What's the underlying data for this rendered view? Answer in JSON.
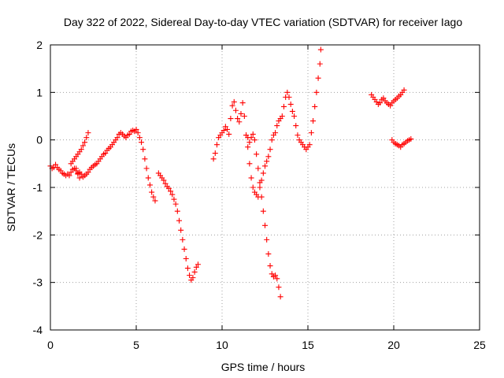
{
  "chart_data": {
    "type": "scatter",
    "title": "Day 322 of 2022, Sidereal Day-to-day VTEC variation (SDTVAR) for receiver Iago",
    "xlabel": "GPS time / hours",
    "ylabel": "SDTVAR / TECUs",
    "xlim": [
      0,
      25
    ],
    "ylim": [
      -4,
      2
    ],
    "xticks": [
      "0",
      "5",
      "10",
      "15",
      "20",
      "25"
    ],
    "yticks": [
      "-4",
      "-3",
      "-2",
      "-1",
      "0",
      "1",
      "2"
    ],
    "grid": true,
    "marker": "plus",
    "color": "#ff0000",
    "series": [
      {
        "points": [
          [
            0.0,
            -0.55
          ],
          [
            0.1,
            -0.6
          ],
          [
            0.2,
            -0.58
          ],
          [
            0.3,
            -0.52
          ],
          [
            0.4,
            -0.58
          ],
          [
            0.5,
            -0.62
          ],
          [
            0.6,
            -0.65
          ],
          [
            0.7,
            -0.7
          ],
          [
            0.8,
            -0.72
          ],
          [
            0.9,
            -0.75
          ],
          [
            1.0,
            -0.72
          ],
          [
            1.1,
            -0.75
          ],
          [
            1.2,
            -0.68
          ],
          [
            1.3,
            -0.62
          ],
          [
            1.4,
            -0.6
          ],
          [
            1.5,
            -0.65
          ],
          [
            1.6,
            -0.72
          ],
          [
            1.7,
            -0.68
          ],
          [
            1.8,
            -0.72
          ],
          [
            1.9,
            -0.78
          ],
          [
            2.0,
            -0.75
          ],
          [
            2.1,
            -0.72
          ],
          [
            2.2,
            -0.68
          ],
          [
            2.3,
            -0.62
          ],
          [
            2.4,
            -0.58
          ],
          [
            2.5,
            -0.55
          ],
          [
            2.6,
            -0.52
          ],
          [
            2.7,
            -0.5
          ],
          [
            2.8,
            -0.45
          ],
          [
            2.9,
            -0.4
          ],
          [
            3.0,
            -0.35
          ],
          [
            3.1,
            -0.3
          ],
          [
            3.2,
            -0.28
          ],
          [
            3.3,
            -0.22
          ],
          [
            3.4,
            -0.18
          ],
          [
            3.5,
            -0.15
          ],
          [
            3.6,
            -0.1
          ],
          [
            3.7,
            -0.05
          ],
          [
            3.8,
            0.0
          ],
          [
            3.9,
            0.05
          ],
          [
            4.0,
            0.12
          ],
          [
            4.1,
            0.15
          ],
          [
            4.2,
            0.12
          ],
          [
            4.3,
            0.08
          ],
          [
            4.4,
            0.05
          ],
          [
            4.5,
            0.1
          ],
          [
            4.6,
            0.12
          ],
          [
            4.7,
            0.18
          ],
          [
            4.8,
            0.2
          ],
          [
            4.9,
            0.18
          ],
          [
            5.0,
            0.22
          ],
          [
            5.1,
            0.15
          ],
          [
            5.2,
            0.05
          ],
          [
            5.3,
            -0.05
          ],
          [
            5.4,
            -0.2
          ],
          [
            5.5,
            -0.4
          ],
          [
            5.6,
            -0.6
          ],
          [
            5.7,
            -0.8
          ],
          [
            5.8,
            -0.95
          ],
          [
            5.9,
            -1.1
          ],
          [
            6.0,
            -1.2
          ],
          [
            6.1,
            -1.28
          ]
        ]
      },
      {
        "points": [
          [
            1.2,
            -0.5
          ],
          [
            1.3,
            -0.45
          ],
          [
            1.4,
            -0.4
          ],
          [
            1.5,
            -0.35
          ],
          [
            1.6,
            -0.3
          ],
          [
            1.7,
            -0.25
          ],
          [
            1.8,
            -0.2
          ],
          [
            1.9,
            -0.12
          ],
          [
            2.0,
            -0.05
          ],
          [
            2.1,
            0.05
          ],
          [
            2.2,
            0.15
          ],
          [
            1.5,
            -0.6
          ],
          [
            1.6,
            -0.7
          ],
          [
            1.7,
            -0.8
          ]
        ]
      },
      {
        "points": [
          [
            6.3,
            -0.7
          ],
          [
            6.4,
            -0.75
          ],
          [
            6.5,
            -0.8
          ],
          [
            6.6,
            -0.85
          ],
          [
            6.7,
            -0.92
          ],
          [
            6.8,
            -0.98
          ],
          [
            6.9,
            -1.02
          ],
          [
            7.0,
            -1.08
          ],
          [
            7.1,
            -1.15
          ],
          [
            7.2,
            -1.25
          ],
          [
            7.3,
            -1.35
          ],
          [
            7.4,
            -1.5
          ],
          [
            7.5,
            -1.7
          ],
          [
            7.6,
            -1.9
          ],
          [
            7.7,
            -2.1
          ],
          [
            7.8,
            -2.3
          ],
          [
            7.9,
            -2.5
          ],
          [
            8.0,
            -2.7
          ],
          [
            8.1,
            -2.85
          ],
          [
            8.2,
            -2.95
          ],
          [
            8.3,
            -2.9
          ],
          [
            8.4,
            -2.78
          ],
          [
            8.5,
            -2.68
          ],
          [
            8.6,
            -2.62
          ]
        ]
      },
      {
        "points": [
          [
            9.5,
            -0.4
          ],
          [
            9.6,
            -0.28
          ],
          [
            9.7,
            -0.1
          ],
          [
            9.8,
            0.05
          ],
          [
            9.9,
            0.1
          ],
          [
            10.0,
            0.15
          ],
          [
            10.1,
            0.2
          ],
          [
            10.2,
            0.28
          ],
          [
            10.3,
            0.22
          ],
          [
            10.4,
            0.12
          ],
          [
            10.5,
            0.45
          ],
          [
            10.6,
            0.72
          ],
          [
            10.7,
            0.8
          ],
          [
            10.8,
            0.62
          ],
          [
            10.9,
            0.45
          ],
          [
            11.0,
            0.38
          ],
          [
            11.1,
            0.55
          ],
          [
            11.2,
            0.78
          ],
          [
            11.3,
            0.5
          ],
          [
            11.4,
            0.1
          ],
          [
            11.5,
            -0.15
          ],
          [
            11.6,
            -0.5
          ],
          [
            11.7,
            -0.8
          ],
          [
            11.8,
            -1.0
          ],
          [
            11.9,
            -1.1
          ],
          [
            12.0,
            -1.15
          ],
          [
            12.1,
            -1.2
          ],
          [
            12.2,
            -1.0
          ],
          [
            12.3,
            -0.85
          ],
          [
            12.4,
            -0.7
          ],
          [
            12.5,
            -0.55
          ],
          [
            12.6,
            -0.45
          ],
          [
            12.7,
            -0.35
          ],
          [
            12.8,
            -0.2
          ],
          [
            12.9,
            0.0
          ],
          [
            13.0,
            0.1
          ],
          [
            13.1,
            0.15
          ],
          [
            13.2,
            0.3
          ],
          [
            13.3,
            0.4
          ],
          [
            13.4,
            0.45
          ],
          [
            13.5,
            0.5
          ],
          [
            13.6,
            0.7
          ],
          [
            13.7,
            0.9
          ],
          [
            13.8,
            1.0
          ],
          [
            13.9,
            0.9
          ],
          [
            14.0,
            0.75
          ],
          [
            14.1,
            0.6
          ],
          [
            14.2,
            0.5
          ],
          [
            14.3,
            0.3
          ],
          [
            14.4,
            0.1
          ],
          [
            14.5,
            0.0
          ],
          [
            14.6,
            -0.05
          ],
          [
            14.7,
            -0.1
          ],
          [
            14.8,
            -0.15
          ],
          [
            14.9,
            -0.2
          ],
          [
            15.0,
            -0.15
          ],
          [
            15.1,
            -0.1
          ],
          [
            15.2,
            0.15
          ],
          [
            15.3,
            0.4
          ],
          [
            15.4,
            0.7
          ],
          [
            15.5,
            1.0
          ],
          [
            15.6,
            1.3
          ],
          [
            15.7,
            1.6
          ],
          [
            15.75,
            1.9
          ]
        ]
      },
      {
        "points": [
          [
            11.4,
            0.1
          ],
          [
            11.5,
            0.05
          ],
          [
            11.6,
            -0.05
          ],
          [
            11.7,
            0.05
          ],
          [
            11.8,
            0.12
          ],
          [
            11.9,
            0.0
          ],
          [
            12.0,
            -0.3
          ],
          [
            12.1,
            -0.6
          ],
          [
            12.2,
            -0.9
          ],
          [
            12.3,
            -1.2
          ],
          [
            12.4,
            -1.5
          ],
          [
            12.5,
            -1.8
          ],
          [
            12.6,
            -2.1
          ],
          [
            12.7,
            -2.4
          ],
          [
            12.8,
            -2.65
          ],
          [
            12.9,
            -2.82
          ],
          [
            13.0,
            -2.88
          ],
          [
            13.1,
            -2.85
          ],
          [
            13.2,
            -2.92
          ],
          [
            13.3,
            -3.1
          ],
          [
            13.4,
            -3.3
          ]
        ]
      },
      {
        "points": [
          [
            18.7,
            0.95
          ],
          [
            18.8,
            0.9
          ],
          [
            18.9,
            0.85
          ],
          [
            19.0,
            0.8
          ],
          [
            19.1,
            0.75
          ],
          [
            19.2,
            0.78
          ],
          [
            19.3,
            0.85
          ],
          [
            19.4,
            0.88
          ],
          [
            19.5,
            0.82
          ],
          [
            19.6,
            0.78
          ],
          [
            19.7,
            0.75
          ],
          [
            19.8,
            0.72
          ],
          [
            19.9,
            0.78
          ],
          [
            20.0,
            0.82
          ],
          [
            20.1,
            0.85
          ],
          [
            20.2,
            0.88
          ],
          [
            20.3,
            0.92
          ],
          [
            20.4,
            0.95
          ],
          [
            20.5,
            1.0
          ],
          [
            20.6,
            1.05
          ]
        ]
      },
      {
        "points": [
          [
            19.9,
            0.0
          ],
          [
            20.0,
            -0.05
          ],
          [
            20.1,
            -0.08
          ],
          [
            20.2,
            -0.1
          ],
          [
            20.3,
            -0.12
          ],
          [
            20.4,
            -0.15
          ],
          [
            20.5,
            -0.1
          ],
          [
            20.6,
            -0.08
          ],
          [
            20.7,
            -0.05
          ],
          [
            20.8,
            -0.02
          ],
          [
            20.9,
            0.0
          ],
          [
            21.0,
            0.02
          ]
        ]
      }
    ]
  }
}
